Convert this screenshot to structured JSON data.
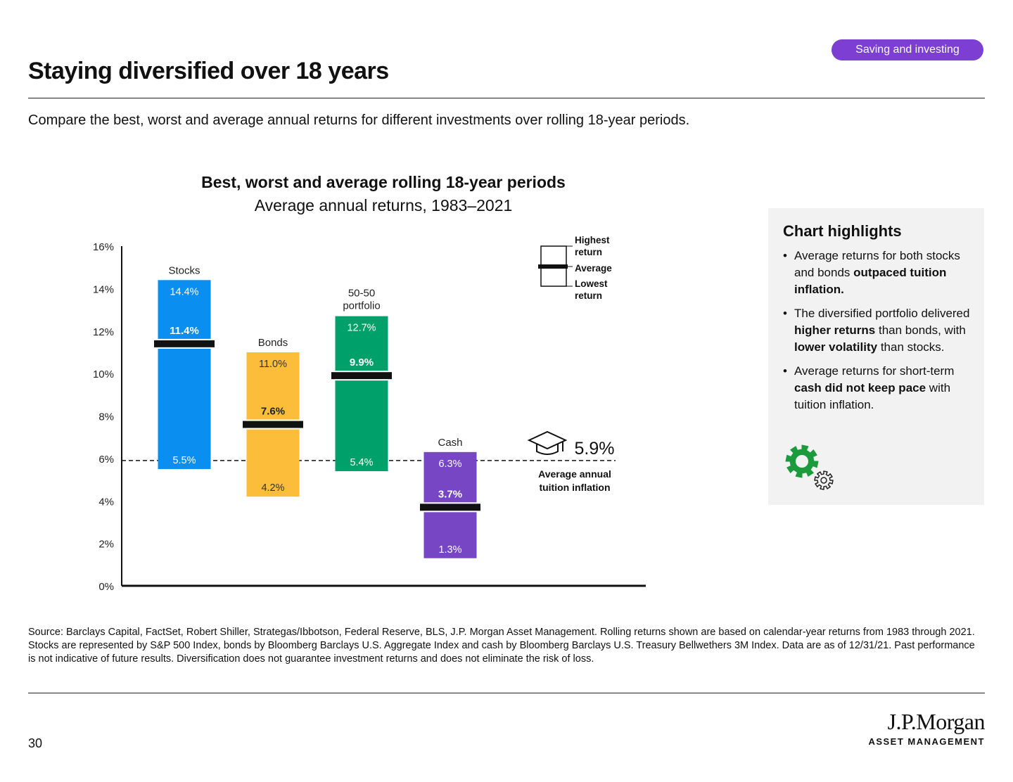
{
  "header": {
    "title": "Staying diversified over 18 years",
    "badge": "Saving and investing",
    "subtitle": "Compare the best, worst and average annual returns for different investments over rolling 18-year periods."
  },
  "chart_data": {
    "type": "bar",
    "title": "Best, worst and average rolling 18-year periods",
    "subtitle": "Average annual returns, 1983–2021",
    "ylim": [
      0,
      16
    ],
    "y_ticks": [
      "0%",
      "2%",
      "4%",
      "6%",
      "8%",
      "10%",
      "12%",
      "14%",
      "16%"
    ],
    "y_tick_values": [
      0,
      2,
      4,
      6,
      8,
      10,
      12,
      14,
      16
    ],
    "grid": false,
    "series": [
      {
        "name": "Stocks",
        "high": 14.4,
        "avg": 11.4,
        "low": 5.5,
        "high_label": "14.4%",
        "avg_label": "11.4%",
        "low_label": "5.5%",
        "color": "#0a8ff0"
      },
      {
        "name": "Bonds",
        "high": 11.0,
        "avg": 7.6,
        "low": 4.2,
        "high_label": "11.0%",
        "avg_label": "7.6%",
        "low_label": "4.2%",
        "color": "#fbbd3a"
      },
      {
        "name": "50-50 portfolio",
        "name_lines": [
          "50-50",
          "portfolio"
        ],
        "high": 12.7,
        "avg": 9.9,
        "low": 5.4,
        "high_label": "12.7%",
        "avg_label": "9.9%",
        "low_label": "5.4%",
        "color": "#00a06a"
      },
      {
        "name": "Cash",
        "high": 6.3,
        "avg": 3.7,
        "low": 1.3,
        "high_label": "6.3%",
        "avg_label": "3.7%",
        "low_label": "1.3%",
        "color": "#7646c4"
      }
    ],
    "reference_line": {
      "value": 5.9,
      "label": "5.9%",
      "caption_lines": [
        "Average annual",
        "tuition inflation"
      ]
    },
    "legend": {
      "placement": "top-right",
      "highest": [
        "Highest",
        "return"
      ],
      "average": "Average",
      "lowest": [
        "Lowest",
        "return"
      ]
    }
  },
  "highlights": {
    "title": "Chart highlights",
    "items": [
      [
        {
          "t": "Average returns for both stocks and bonds "
        },
        {
          "t": "outpaced tuition inflation.",
          "b": true
        }
      ],
      [
        {
          "t": "The diversified portfolio delivered "
        },
        {
          "t": "higher returns",
          "b": true
        },
        {
          "t": " than bonds, with "
        },
        {
          "t": "lower volatility",
          "b": true
        },
        {
          "t": " than stocks."
        }
      ],
      [
        {
          "t": "Average returns for short-term "
        },
        {
          "t": "cash did not keep pace",
          "b": true
        },
        {
          "t": " with tuition inflation."
        }
      ]
    ],
    "icon": "gears-icon",
    "icon_colors": [
      "#1c9b3c",
      "#222222"
    ]
  },
  "footer": {
    "source": "Source: Barclays Capital, FactSet, Robert Shiller, Strategas/Ibbotson, Federal Reserve, BLS, J.P. Morgan Asset Management. Rolling returns shown are based on calendar-year returns from 1983 through 2021. Stocks are represented by S&P 500 Index, bonds by Bloomberg Barclays U.S. Aggregate Index and cash by Bloomberg Barclays U.S. Treasury Bellwethers 3M Index. Data are as of 12/31/21. Past performance is not indicative of future results. Diversification does not guarantee investment returns and does not eliminate the risk of loss.",
    "page_number": "30",
    "brand": "J.P.Morgan",
    "brand_sub": "ASSET MANAGEMENT"
  }
}
